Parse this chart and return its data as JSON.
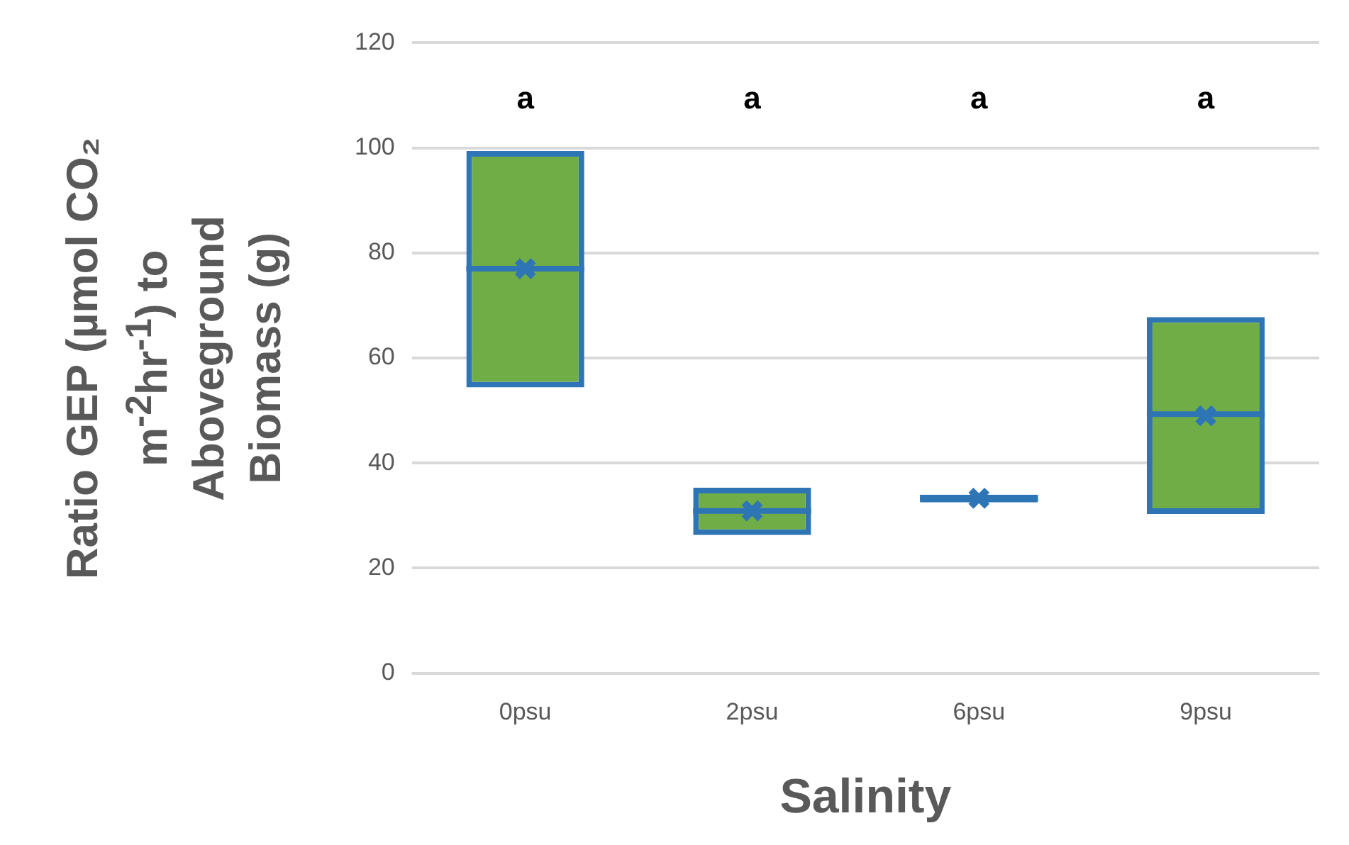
{
  "chart_data": {
    "type": "box",
    "xlabel": "Salinity",
    "ylabel": "Ratio GEP (µmol CO₂ m$^{-2}$hr$^{-1}$) to Aboveground Biomass (g)",
    "categories": [
      "0psu",
      "2psu",
      "6psu",
      "9psu"
    ],
    "series": [
      {
        "color": "#2e75b6",
        "boxes": [
          {
            "low": 54.4,
            "q1": 54.4,
            "median": 77,
            "q3": 99.4,
            "high": 99.4,
            "mean": 77
          },
          {
            "low": 26.3,
            "q1": 26.3,
            "median": 30.9,
            "q3": 35.3,
            "high": 35.3,
            "mean": 30.9
          },
          {
            "low": 32.5,
            "q1": 32.5,
            "median": 33.3,
            "q3": 34,
            "high": 34,
            "mean": 33.3
          },
          {
            "low": 30.3,
            "q1": 30.3,
            "median": 49.3,
            "q3": 67.8,
            "high": 67.8,
            "mean": 49
          }
        ]
      }
    ],
    "ylim": [
      0,
      120
    ],
    "yticks": [
      0,
      20,
      40,
      60,
      80,
      100,
      120
    ],
    "grid": "y",
    "legend": false,
    "annotations": [
      "a",
      "a",
      "a",
      "a"
    ]
  }
}
